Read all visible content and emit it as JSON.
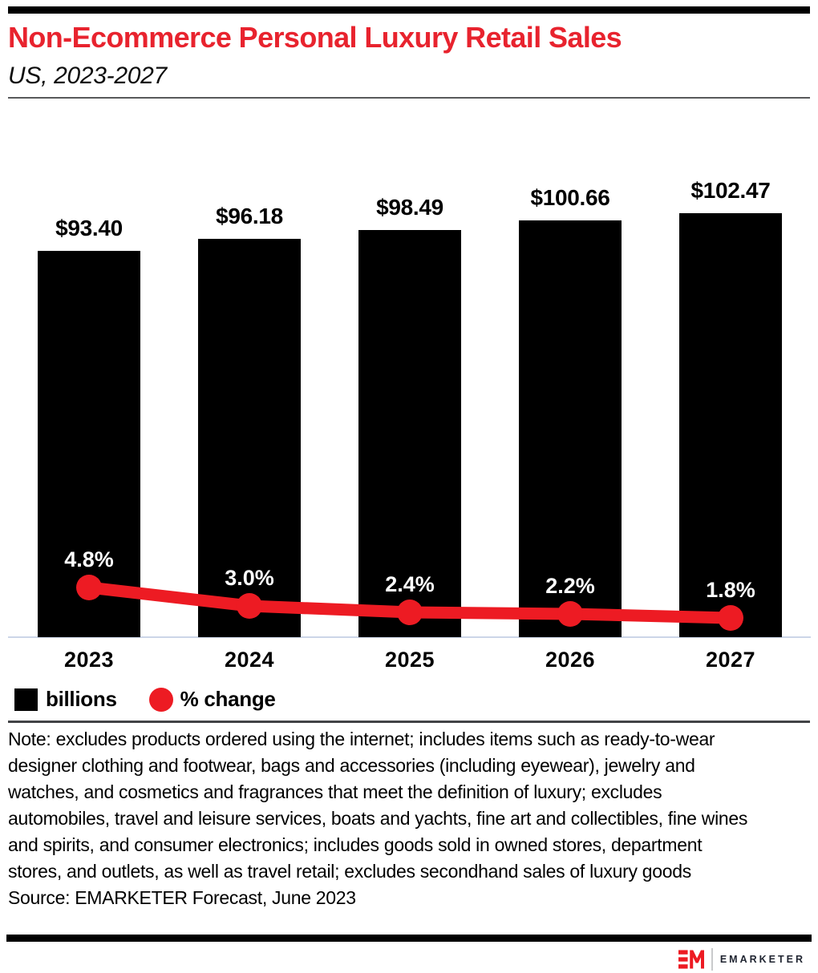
{
  "header": {
    "title": "Non-Ecommerce Personal Luxury Retail Sales",
    "subtitle": "US, 2023-2027"
  },
  "chart_data": {
    "type": "bar",
    "subtype": "combo-bar-line",
    "title": "Non-Ecommerce Personal Luxury Retail Sales",
    "subtitle": "US, 2023-2027",
    "categories": [
      "2023",
      "2024",
      "2025",
      "2026",
      "2027"
    ],
    "series": [
      {
        "name": "billions",
        "type": "bar",
        "color": "#000000",
        "values": [
          93.4,
          96.18,
          98.49,
          100.66,
          102.47
        ],
        "labels": [
          "$93.40",
          "$96.18",
          "$98.49",
          "$100.66",
          "$102.47"
        ]
      },
      {
        "name": "% change",
        "type": "line",
        "color": "#ed1b23",
        "values": [
          4.8,
          3.0,
          2.4,
          2.2,
          1.8
        ],
        "labels": [
          "4.8%",
          "3.0%",
          "2.4%",
          "2.2%",
          "1.8%"
        ]
      }
    ],
    "xlabel": "",
    "ylabel": "",
    "grid": false,
    "bar_ylim": [
      0,
      102.47
    ],
    "legend_position": "bottom-left"
  },
  "legend": {
    "items": [
      {
        "label": "billions",
        "swatch": "square",
        "color": "#000000"
      },
      {
        "label": "% change",
        "swatch": "circle",
        "color": "#ed1b23"
      }
    ]
  },
  "footnote": {
    "note": "Note: excludes products ordered using the internet; includes items such as ready-to-wear designer clothing and footwear, bags and accessories (including eyewear), jewelry and watches, and cosmetics and fragrances that meet the definition of luxury; excludes automobiles, travel and leisure services, boats and yachts, fine art and collectibles, fine wines and spirits, and consumer electronics; includes goods sold in owned stores, department stores, and outlets, as well as travel retail; excludes secondhand sales of luxury goods",
    "source": "Source: EMARKETER Forecast, June 2023"
  },
  "footer": {
    "monogram": "EM",
    "brand": "EMARKETER"
  },
  "colors": {
    "title_red": "#e8232e",
    "line_red": "#ed1b23",
    "bar_black": "#000000",
    "axis_line": "#ccd6e8",
    "header_divider": "#58595b",
    "legend_divider": "#424346",
    "brand_text": "#202531"
  }
}
